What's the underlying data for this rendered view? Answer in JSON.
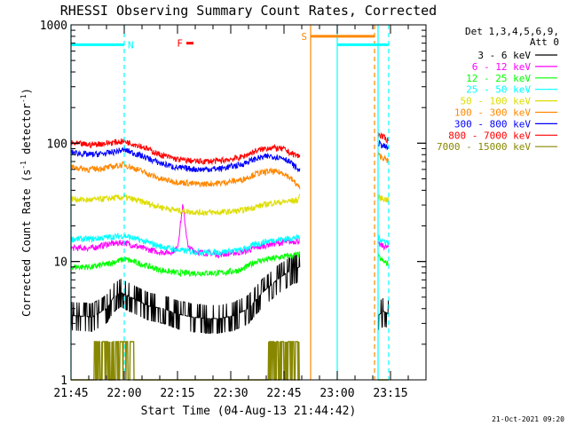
{
  "chart_data": {
    "type": "line",
    "title": "RHESSI Observing Summary Count Rates, Corrected",
    "xlabel": "Start Time (04-Aug-13 21:44:42)",
    "ylabel": "Corrected Count Rate (s",
    "ylabel_sup": "-1",
    "ylabel_mid": " detector",
    "ylabel_end": ")",
    "x_units": "minutes after 21:45 UT",
    "xlim": [
      0,
      100
    ],
    "ylim": [
      1,
      1000
    ],
    "yscale": "log",
    "x_ticks": [
      {
        "value": 0,
        "label": "21:45"
      },
      {
        "value": 15,
        "label": "22:00"
      },
      {
        "value": 30,
        "label": "22:15"
      },
      {
        "value": 45,
        "label": "22:30"
      },
      {
        "value": 60,
        "label": "22:45"
      },
      {
        "value": 75,
        "label": "23:00"
      },
      {
        "value": 90,
        "label": "23:15"
      }
    ],
    "y_ticks": [
      {
        "value": 1,
        "label": "1"
      },
      {
        "value": 10,
        "label": "10"
      },
      {
        "value": 100,
        "label": "100"
      },
      {
        "value": 1000,
        "label": "1000"
      }
    ],
    "legend": {
      "header1": "Det 1,3,4,5,6,9,",
      "header2": "Att 0",
      "placement": "right"
    },
    "series": [
      {
        "name": "3 - 6 keV",
        "color": "#000000",
        "x": [
          0,
          6,
          10,
          12,
          14,
          18,
          22,
          26,
          30,
          34,
          38,
          42,
          46,
          50,
          54,
          58,
          62,
          64.5,
          86.5,
          88,
          89.5
        ],
        "values": [
          3.5,
          3.4,
          4.0,
          5.0,
          5.5,
          4.8,
          4.2,
          4.0,
          3.6,
          3.4,
          3.3,
          3.3,
          3.5,
          4.0,
          5.5,
          7.0,
          8.5,
          9.0,
          3.5,
          3.8,
          3.6
        ]
      },
      {
        "name": "6 - 12 keV",
        "color": "#ff00ff",
        "x": [
          0,
          6,
          10,
          15,
          20,
          25,
          28,
          30,
          31.5,
          33,
          36,
          42,
          48,
          52,
          56,
          60,
          64.5,
          86.5,
          88,
          89.5
        ],
        "values": [
          13,
          13,
          14,
          14.5,
          13,
          12,
          12,
          13,
          30,
          13,
          12,
          11.5,
          12,
          13,
          14,
          14.5,
          15,
          14,
          13.5,
          13
        ]
      },
      {
        "name": "12 - 25 keV",
        "color": "#00ff00",
        "x": [
          0,
          6,
          10,
          15,
          20,
          25,
          30,
          36,
          42,
          48,
          52,
          56,
          60,
          64.5,
          86.5,
          88,
          89.5
        ],
        "values": [
          9,
          9,
          9.5,
          10.5,
          9.5,
          8.5,
          8,
          8,
          8,
          8.5,
          10,
          10.5,
          11,
          11.5,
          11,
          10,
          9.5
        ]
      },
      {
        "name": "25 - 50 keV",
        "color": "#00ffff",
        "x": [
          0,
          6,
          10,
          15,
          20,
          25,
          30,
          36,
          42,
          48,
          52,
          56,
          60,
          64.5,
          86.5,
          88,
          89.5
        ],
        "values": [
          15.5,
          15.5,
          16,
          16.5,
          15,
          13.5,
          12.5,
          12,
          12,
          12.5,
          14,
          15,
          15.5,
          16,
          16,
          15,
          14.5
        ]
      },
      {
        "name": "50 - 100 keV",
        "color": "#dddd00",
        "x": [
          0,
          5,
          10,
          15,
          20,
          25,
          30,
          36,
          42,
          48,
          52,
          56,
          60,
          64,
          64.5,
          86.5,
          88,
          89.5
        ],
        "values": [
          34,
          33,
          34,
          35,
          32,
          29,
          27,
          26,
          26,
          27,
          29,
          31,
          32,
          33,
          38,
          35,
          34,
          33
        ]
      },
      {
        "name": "100 - 300 keV",
        "color": "#ff8800",
        "x": [
          0,
          5,
          10,
          15,
          20,
          25,
          30,
          36,
          42,
          48,
          52,
          56,
          60,
          62,
          64.5,
          86.5,
          88,
          89.5
        ],
        "values": [
          63,
          60,
          62,
          66,
          58,
          50,
          47,
          45,
          46,
          49,
          55,
          58,
          56,
          50,
          42,
          80,
          75,
          70
        ]
      },
      {
        "name": "300 - 800 keV",
        "color": "#0000ff",
        "x": [
          0,
          5,
          10,
          15,
          20,
          25,
          30,
          36,
          42,
          48,
          52,
          56,
          60,
          62,
          64.5,
          86.5,
          88,
          89.5
        ],
        "values": [
          84,
          80,
          82,
          88,
          78,
          68,
          62,
          60,
          61,
          66,
          74,
          78,
          75,
          68,
          58,
          100,
          95,
          90
        ]
      },
      {
        "name": "800 - 7000 keV",
        "color": "#ff0000",
        "x": [
          0,
          5,
          10,
          15,
          20,
          25,
          30,
          36,
          42,
          48,
          52,
          56,
          60,
          62,
          64.5,
          86.5,
          88,
          89.5
        ],
        "values": [
          100,
          97,
          100,
          104,
          94,
          80,
          73,
          70,
          71,
          76,
          86,
          92,
          89,
          82,
          77,
          120,
          112,
          105
        ]
      },
      {
        "name": "7000 - 15000 keV",
        "color": "#888800",
        "x": [
          0,
          12,
          16,
          20,
          48,
          62,
          86.5,
          89.5
        ],
        "values": [
          1,
          2.1,
          2.1,
          1,
          1,
          2.1,
          1,
          1
        ]
      }
    ],
    "markers": {
      "night_color": "#00ffff",
      "saa_color": "#ff8800",
      "flare_color": "#ff0000",
      "night_label": "N",
      "saa_label": "S",
      "flare_label": "F",
      "flare_x": [
        32.5,
        34.5
      ],
      "flare_y": 700,
      "night_segments": [
        [
          0,
          15
        ],
        [
          75,
          89.5
        ]
      ],
      "night_level": 680,
      "saa_segments": [
        [
          67.5,
          85.5
        ]
      ],
      "saa_level": 800,
      "solid_lines": [
        {
          "x": 0,
          "kind": "night"
        },
        {
          "x": 75,
          "kind": "night"
        },
        {
          "x": 67.5,
          "kind": "saa"
        },
        {
          "x": 86.5,
          "kind": "night"
        }
      ],
      "dashed_lines": [
        {
          "x": 15,
          "kind": "night"
        },
        {
          "x": 89.5,
          "kind": "night"
        },
        {
          "x": 85.5,
          "kind": "saa"
        }
      ]
    },
    "footer_date": "21-Oct-2021 09:20"
  }
}
